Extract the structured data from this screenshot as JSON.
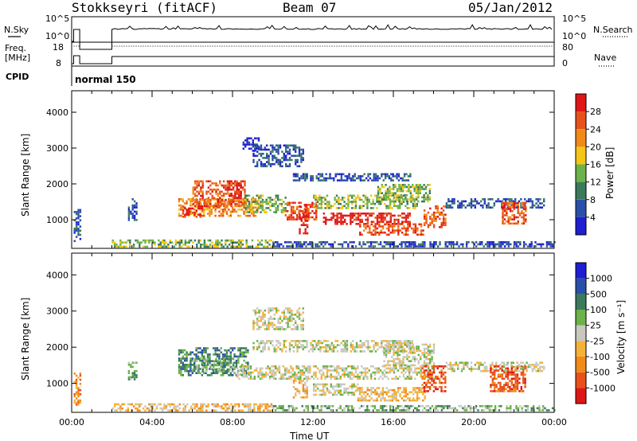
{
  "header": {
    "station": "Stokkseyri (fitACF)",
    "beam": "Beam 07",
    "date": "05/Jan/2012"
  },
  "strips": {
    "nsky_label": "N.Sky",
    "nsky_ticks": [
      "10^5",
      "10^0"
    ],
    "nsearch_label": "N.Search",
    "nsearch_ticks": [
      "10^5",
      "10^0"
    ],
    "freq_label": "Freq.",
    "freq_unit": "[MHz]",
    "freq_ticks": [
      "18",
      "8"
    ],
    "nave_label": "Nave",
    "nave_ticks": [
      "80",
      "0"
    ],
    "cpid_label": "CPID",
    "cpid_value": "normal 150"
  },
  "colors": {
    "power": [
      "#1e1ed2",
      "#2a4fa8",
      "#3b7a5a",
      "#6cb24a",
      "#f5c518",
      "#f08a18",
      "#e8511a",
      "#e01616"
    ],
    "velocity": [
      "#e01616",
      "#e8511a",
      "#f08a18",
      "#f5b23a",
      "#c8c8c0",
      "#6cb24a",
      "#3b7a5a",
      "#2a4fa8",
      "#1e1ed2"
    ]
  },
  "chart_data": [
    {
      "type": "heatmap",
      "name": "power",
      "ylabel": "Slant Range [km]",
      "yticks": [
        "1000",
        "2000",
        "3000",
        "4000"
      ],
      "ylim": [
        200,
        4600
      ],
      "colorbar_title": "Power [dB]",
      "colorbar_ticks": [
        "4",
        "8",
        "12",
        "16",
        "20",
        "24",
        "28"
      ],
      "regions": [
        {
          "t0": 0.1,
          "t1": 0.4,
          "r0": 400,
          "r1": 1300,
          "lvl": 1
        },
        {
          "t0": 2.8,
          "t1": 3.2,
          "r0": 1000,
          "r1": 1600,
          "lvl": 1
        },
        {
          "t0": 5.3,
          "t1": 9.2,
          "r0": 1100,
          "r1": 1600,
          "lvl": 5
        },
        {
          "t0": 6.0,
          "t1": 8.6,
          "r0": 1400,
          "r1": 2100,
          "lvl": 6
        },
        {
          "t0": 5.5,
          "t1": 6.5,
          "r0": 1100,
          "r1": 1400,
          "lvl": 7
        },
        {
          "t0": 7.8,
          "t1": 8.4,
          "r0": 1600,
          "r1": 2100,
          "lvl": 7
        },
        {
          "t0": 8.6,
          "t1": 10.6,
          "r0": 1200,
          "r1": 1700,
          "lvl": 3
        },
        {
          "t0": 10.6,
          "t1": 12.2,
          "r0": 1000,
          "r1": 1500,
          "lvl": 6
        },
        {
          "t0": 11.3,
          "t1": 11.7,
          "r0": 600,
          "r1": 1400,
          "lvl": 7
        },
        {
          "t0": 12.0,
          "t1": 17.2,
          "r0": 1300,
          "r1": 1700,
          "lvl": 3
        },
        {
          "t0": 12.5,
          "t1": 16.8,
          "r0": 900,
          "r1": 1200,
          "lvl": 7
        },
        {
          "t0": 14.3,
          "t1": 17.5,
          "r0": 600,
          "r1": 900,
          "lvl": 6
        },
        {
          "t0": 15.2,
          "t1": 17.8,
          "r0": 1500,
          "r1": 2000,
          "lvl": 3
        },
        {
          "t0": 17.5,
          "t1": 18.6,
          "r0": 800,
          "r1": 1400,
          "lvl": 6
        },
        {
          "t0": 11.0,
          "t1": 16.8,
          "r0": 2100,
          "r1": 2300,
          "lvl": 1
        },
        {
          "t0": 9.0,
          "t1": 11.5,
          "r0": 2500,
          "r1": 3100,
          "lvl": 1
        },
        {
          "t0": 8.5,
          "t1": 9.3,
          "r0": 2900,
          "r1": 3300,
          "lvl": 0
        },
        {
          "t0": 18.6,
          "t1": 23.5,
          "r0": 1350,
          "r1": 1600,
          "lvl": 1
        },
        {
          "t0": 21.4,
          "t1": 22.6,
          "r0": 900,
          "r1": 1500,
          "lvl": 6
        },
        {
          "t0": 2.0,
          "t1": 10.0,
          "r0": 250,
          "r1": 450,
          "lvl": 3
        },
        {
          "t0": 10.0,
          "t1": 24.0,
          "r0": 250,
          "r1": 400,
          "lvl": 1
        }
      ]
    },
    {
      "type": "heatmap",
      "name": "velocity",
      "ylabel": "Slant Range [km]",
      "yticks": [
        "1000",
        "2000",
        "3000",
        "4000"
      ],
      "ylim": [
        200,
        4600
      ],
      "colorbar_title": "Velocity [m s⁻¹]",
      "colorbar_ticks": [
        "-1000",
        "-500",
        "-100",
        "-25",
        "25",
        "100",
        "500",
        "1000"
      ],
      "xlabel": "Time UT",
      "xticks": [
        "00:00",
        "04:00",
        "08:00",
        "12:00",
        "16:00",
        "20:00",
        "00:00"
      ],
      "xlim": [
        0,
        24
      ],
      "regions": [
        {
          "t0": 0.1,
          "t1": 0.4,
          "r0": 400,
          "r1": 1300,
          "lvl": 2
        },
        {
          "t0": 2.8,
          "t1": 3.2,
          "r0": 1100,
          "r1": 1600,
          "lvl": 5
        },
        {
          "t0": 5.3,
          "t1": 8.8,
          "r0": 1200,
          "r1": 2000,
          "lvl": 6
        },
        {
          "t0": 6.0,
          "t1": 8.0,
          "r0": 1300,
          "r1": 1700,
          "lvl": 5
        },
        {
          "t0": 8.2,
          "t1": 18.0,
          "r0": 1150,
          "r1": 1500,
          "lvl": 4
        },
        {
          "t0": 9.0,
          "t1": 17.0,
          "r0": 1900,
          "r1": 2200,
          "lvl": 4
        },
        {
          "t0": 15.5,
          "t1": 18.0,
          "r0": 1500,
          "r1": 2100,
          "lvl": 4
        },
        {
          "t0": 11.0,
          "t1": 11.7,
          "r0": 600,
          "r1": 1100,
          "lvl": 3
        },
        {
          "t0": 12.0,
          "t1": 14.2,
          "r0": 700,
          "r1": 1000,
          "lvl": 4
        },
        {
          "t0": 14.2,
          "t1": 17.6,
          "r0": 550,
          "r1": 900,
          "lvl": 3
        },
        {
          "t0": 17.4,
          "t1": 18.6,
          "r0": 800,
          "r1": 1500,
          "lvl": 1
        },
        {
          "t0": 18.6,
          "t1": 23.5,
          "r0": 1350,
          "r1": 1600,
          "lvl": 4
        },
        {
          "t0": 20.8,
          "t1": 22.6,
          "r0": 800,
          "r1": 1500,
          "lvl": 1
        },
        {
          "t0": 9.0,
          "t1": 11.5,
          "r0": 2500,
          "r1": 3100,
          "lvl": 4
        },
        {
          "t0": 2.0,
          "t1": 10.0,
          "r0": 250,
          "r1": 450,
          "lvl": 3
        },
        {
          "t0": 10.0,
          "t1": 24.0,
          "r0": 250,
          "r1": 400,
          "lvl": 5
        }
      ]
    }
  ]
}
